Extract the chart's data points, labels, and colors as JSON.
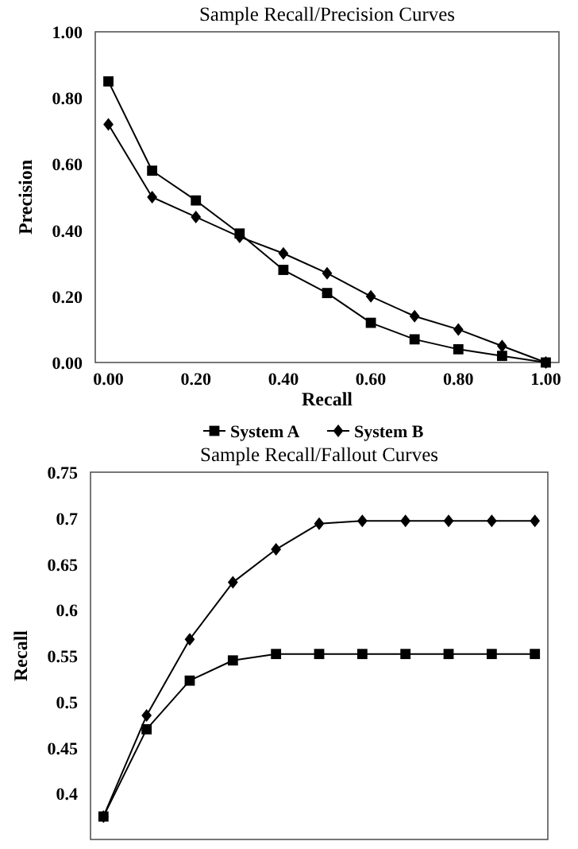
{
  "chart_data": [
    {
      "type": "line",
      "title": "Sample Recall/Precision Curves",
      "xlabel": "Recall",
      "ylabel": "Precision",
      "x": [
        0,
        0.1,
        0.2,
        0.3,
        0.4,
        0.5,
        0.6,
        0.7,
        0.8,
        0.9,
        1.0
      ],
      "series": [
        {
          "name": "System A",
          "color": "#000000",
          "marker": "square",
          "values": [
            0.85,
            0.58,
            0.49,
            0.39,
            0.28,
            0.21,
            0.12,
            0.07,
            0.04,
            0.02,
            0.0
          ]
        },
        {
          "name": "System B",
          "color": "#000000",
          "marker": "diamond",
          "values": [
            0.72,
            0.5,
            0.44,
            0.38,
            0.33,
            0.27,
            0.2,
            0.14,
            0.1,
            0.05,
            0.0
          ]
        }
      ],
      "xlim": [
        -0.03,
        1.03
      ],
      "xticks": [
        {
          "value": 0,
          "label": "0.00"
        },
        {
          "value": 0.2,
          "label": "0.20"
        },
        {
          "value": 0.4,
          "label": "0.40"
        },
        {
          "value": 0.6,
          "label": "0.60"
        },
        {
          "value": 0.8,
          "label": "0.80"
        },
        {
          "value": 1,
          "label": "1.00"
        }
      ],
      "ylim": [
        0,
        1
      ],
      "yticks": [
        {
          "value": 0,
          "label": "0.00"
        },
        {
          "value": 0.2,
          "label": "0.20"
        },
        {
          "value": 0.4,
          "label": "0.40"
        },
        {
          "value": 0.6,
          "label": "0.60"
        },
        {
          "value": 0.8,
          "label": "0.80"
        },
        {
          "value": 1,
          "label": "1.00"
        }
      ],
      "legend": "bottom",
      "grid": false,
      "line_style": "solid"
    },
    {
      "type": "line",
      "title": "Sample Recall/Fallout Curves",
      "ylabel": "Recall",
      "categories": [
        null,
        null,
        null,
        null,
        null,
        null,
        null,
        null,
        null,
        null,
        null
      ],
      "series": [
        {
          "color": "#000000",
          "marker": "diamond",
          "values": [
            0.375,
            0.485,
            0.568,
            0.63,
            0.666,
            0.694,
            0.697,
            0.697,
            0.697,
            0.697,
            0.697
          ]
        },
        {
          "color": "#000000",
          "marker": "square",
          "values": [
            0.375,
            0.47,
            0.523,
            0.545,
            0.552,
            0.552,
            0.552,
            0.552,
            0.552,
            0.552,
            0.552
          ]
        }
      ],
      "ylim": [
        0.35,
        0.75
      ],
      "yticks": [
        0.4,
        0.45,
        0.5,
        0.55,
        0.6,
        0.65,
        0.7,
        0.75
      ],
      "tick_labels": "y",
      "legend": false,
      "grid": false,
      "line_style": "solid"
    }
  ]
}
